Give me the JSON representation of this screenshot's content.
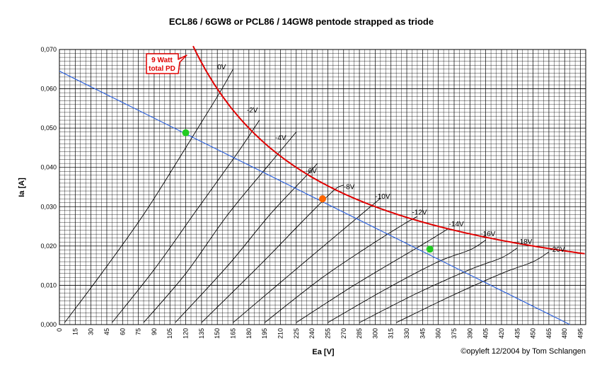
{
  "chart_data": {
    "type": "line",
    "title": "ECL86 / 6GW8 or PCL86 / 14GW8 pentode strapped as triode",
    "xlabel": "Ea [V]",
    "ylabel": "Ia [A]",
    "xlim": [
      0,
      500
    ],
    "ylim": [
      0,
      0.07
    ],
    "x_ticks": [
      "0",
      "15",
      "30",
      "45",
      "60",
      "75",
      "90",
      "105",
      "120",
      "135",
      "150",
      "165",
      "180",
      "195",
      "210",
      "225",
      "240",
      "255",
      "270",
      "285",
      "300",
      "315",
      "330",
      "345",
      "360",
      "375",
      "390",
      "405",
      "420",
      "435",
      "450",
      "465",
      "480",
      "495"
    ],
    "y_ticks": [
      "0,000",
      "0,010",
      "0,020",
      "0,030",
      "0,040",
      "0,050",
      "0,060",
      "0,070"
    ],
    "grid": true,
    "copyright": "©opyleft 12/2004 by Tom Schlangen",
    "callout": {
      "line1": "9 Watt",
      "line2": "total PD"
    },
    "grid_curves": [
      {
        "label": "0V",
        "points": [
          [
            5,
            0.0005
          ],
          [
            40,
            0.013
          ],
          [
            80,
            0.028
          ],
          [
            120,
            0.045
          ],
          [
            150,
            0.058
          ],
          [
            165,
            0.065
          ]
        ],
        "label_at": [
          150,
          0.065
        ]
      },
      {
        "label": "-2V",
        "points": [
          [
            50,
            0.0005
          ],
          [
            90,
            0.014
          ],
          [
            130,
            0.029
          ],
          [
            170,
            0.044
          ],
          [
            190,
            0.052
          ]
        ],
        "label_at": [
          178,
          0.054
        ]
      },
      {
        "label": "-4V",
        "points": [
          [
            80,
            0.0005
          ],
          [
            120,
            0.013
          ],
          [
            160,
            0.028
          ],
          [
            200,
            0.041
          ],
          [
            225,
            0.049
          ]
        ],
        "label_at": [
          205,
          0.047
        ]
      },
      {
        "label": "-6V",
        "points": [
          [
            110,
            0.0005
          ],
          [
            160,
            0.015
          ],
          [
            200,
            0.028
          ],
          [
            235,
            0.038
          ],
          [
            245,
            0.041
          ]
        ],
        "label_at": [
          234,
          0.0385
        ]
      },
      {
        "label": "-8V",
        "points": [
          [
            135,
            0.0005
          ],
          [
            190,
            0.015
          ],
          [
            230,
            0.026
          ],
          [
            260,
            0.034
          ],
          [
            270,
            0.0355
          ]
        ],
        "label_at": [
          270,
          0.0345
        ]
      },
      {
        "label": "-10V",
        "points": [
          [
            165,
            0.0005
          ],
          [
            220,
            0.013
          ],
          [
            260,
            0.022
          ],
          [
            300,
            0.031
          ],
          [
            305,
            0.032
          ]
        ],
        "label_at": [
          300,
          0.032
        ]
      },
      {
        "label": "-12V",
        "points": [
          [
            195,
            0.0005
          ],
          [
            250,
            0.012
          ],
          [
            300,
            0.021
          ],
          [
            330,
            0.026
          ],
          [
            340,
            0.0275
          ]
        ],
        "label_at": [
          335,
          0.028
        ]
      },
      {
        "label": "-14V",
        "points": [
          [
            225,
            0.0005
          ],
          [
            280,
            0.01
          ],
          [
            330,
            0.018
          ],
          [
            355,
            0.022
          ],
          [
            370,
            0.0245
          ]
        ],
        "label_at": [
          370,
          0.025
        ]
      },
      {
        "label": "-16V",
        "points": [
          [
            255,
            0.0005
          ],
          [
            310,
            0.009
          ],
          [
            360,
            0.016
          ],
          [
            390,
            0.019
          ],
          [
            405,
            0.0215
          ]
        ],
        "label_at": [
          400,
          0.0225
        ]
      },
      {
        "label": "-18V",
        "points": [
          [
            285,
            0.0005
          ],
          [
            340,
            0.008
          ],
          [
            390,
            0.014
          ],
          [
            420,
            0.017
          ],
          [
            435,
            0.0195
          ]
        ],
        "label_at": [
          435,
          0.0205
        ]
      },
      {
        "label": "-20V",
        "points": [
          [
            320,
            0.0005
          ],
          [
            370,
            0.007
          ],
          [
            420,
            0.013
          ],
          [
            450,
            0.016
          ],
          [
            465,
            0.0185
          ]
        ],
        "label_at": [
          466,
          0.0185
        ]
      }
    ],
    "load_line": {
      "points": [
        [
          0,
          0.0645
        ],
        [
          500,
          -0.002
        ]
      ]
    },
    "power_curve": {
      "watts": 9,
      "x_start": 127,
      "x_end": 500
    },
    "points": [
      {
        "x": 120,
        "y": 0.0488,
        "color": "#22cc22"
      },
      {
        "x": 250,
        "y": 0.032,
        "color": "#ff6600"
      },
      {
        "x": 352,
        "y": 0.0192,
        "color": "#22cc22"
      }
    ],
    "colors": {
      "grid": "#000000",
      "curves": "#000000",
      "load_line": "#3366dd",
      "power_curve": "#e00000",
      "callout": "#e00000"
    }
  }
}
